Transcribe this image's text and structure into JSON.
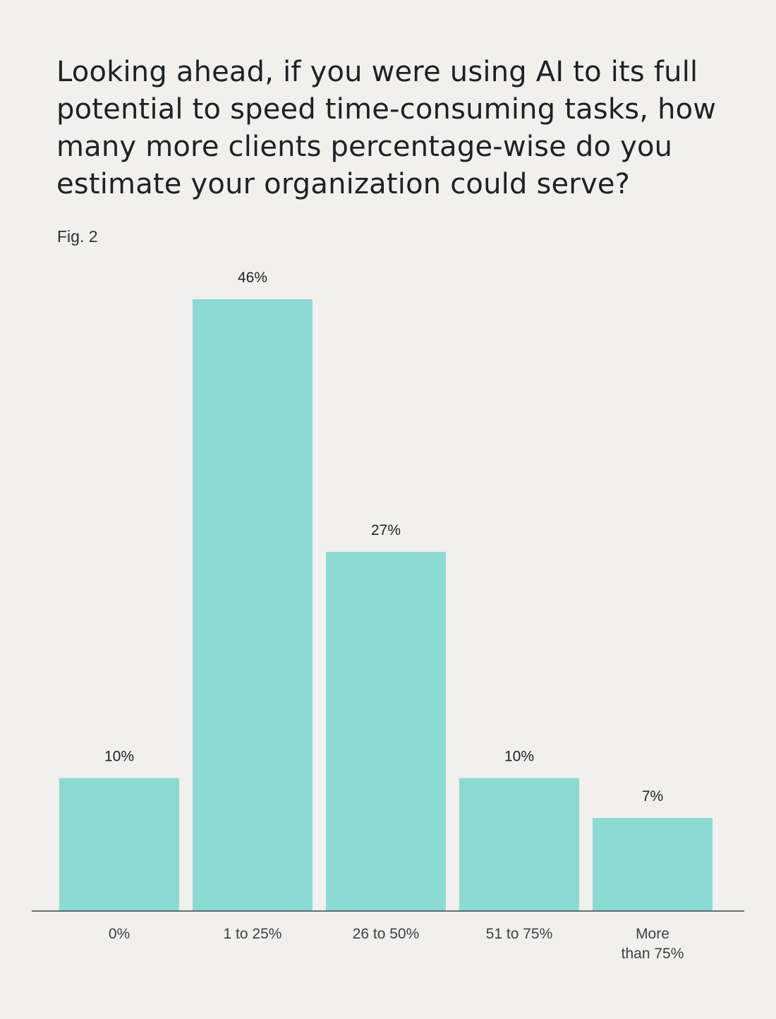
{
  "title": "Looking ahead, if you were using AI to its full potential to speed time-consuming tasks, how many more clients percentage-wise do you estimate your organization could serve?",
  "figure_label": "Fig. 2",
  "colors": {
    "bar": "#8bdbd4",
    "axis": "#3a4348",
    "text": "#1c2226",
    "background": "#f1f0ec"
  },
  "chart_data": {
    "type": "bar",
    "title": "Looking ahead, if you were using AI to its full potential to speed time-consuming tasks, how many more clients percentage-wise do you estimate your organization could serve?",
    "xlabel": "",
    "ylabel": "",
    "categories": [
      [
        "0%"
      ],
      [
        "1 to 25%"
      ],
      [
        "26 to 50%"
      ],
      [
        "51 to 75%"
      ],
      [
        "More",
        "than 75%"
      ]
    ],
    "values": [
      10,
      46,
      27,
      10,
      7
    ],
    "value_labels": [
      "10%",
      "46%",
      "27%",
      "10%",
      "7%"
    ],
    "unit": "%",
    "ylim": [
      0,
      46
    ],
    "grid": false
  }
}
